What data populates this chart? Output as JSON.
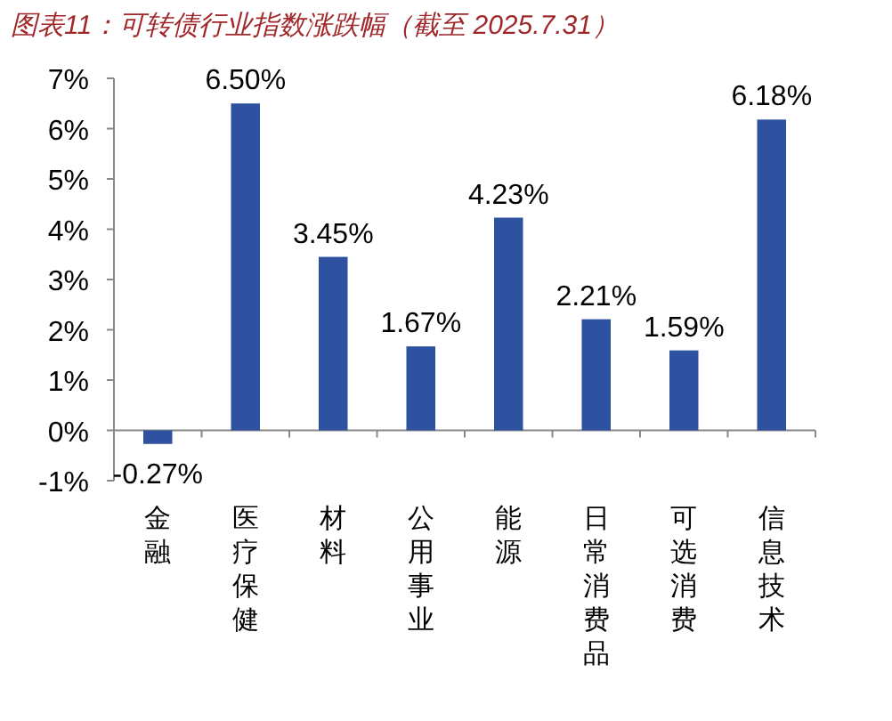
{
  "chart_data": {
    "type": "bar",
    "title": "图表11：可转债行业指数涨跌幅（截至 2025.7.31）",
    "categories": [
      "金融",
      "医疗保健",
      "材料",
      "公用事业",
      "能源",
      "日常消费品",
      "可选消费",
      "信息技术"
    ],
    "values": [
      -0.27,
      6.5,
      3.45,
      1.67,
      4.23,
      2.21,
      1.59,
      6.18
    ],
    "value_labels": [
      "-0.27%",
      "6.50%",
      "3.45%",
      "1.67%",
      "4.23%",
      "2.21%",
      "1.59%",
      "6.18%"
    ],
    "color": "#2f52a0",
    "ylim": [
      -1,
      7
    ],
    "yticks": [
      {
        "value": -1,
        "label": "-1%"
      },
      {
        "value": 0,
        "label": "0%"
      },
      {
        "value": 1,
        "label": "1%"
      },
      {
        "value": 2,
        "label": "2%"
      },
      {
        "value": 3,
        "label": "3%"
      },
      {
        "value": 4,
        "label": "4%"
      },
      {
        "value": 5,
        "label": "5%"
      },
      {
        "value": 6,
        "label": "6%"
      },
      {
        "value": 7,
        "label": "7%"
      }
    ],
    "legend": false
  }
}
